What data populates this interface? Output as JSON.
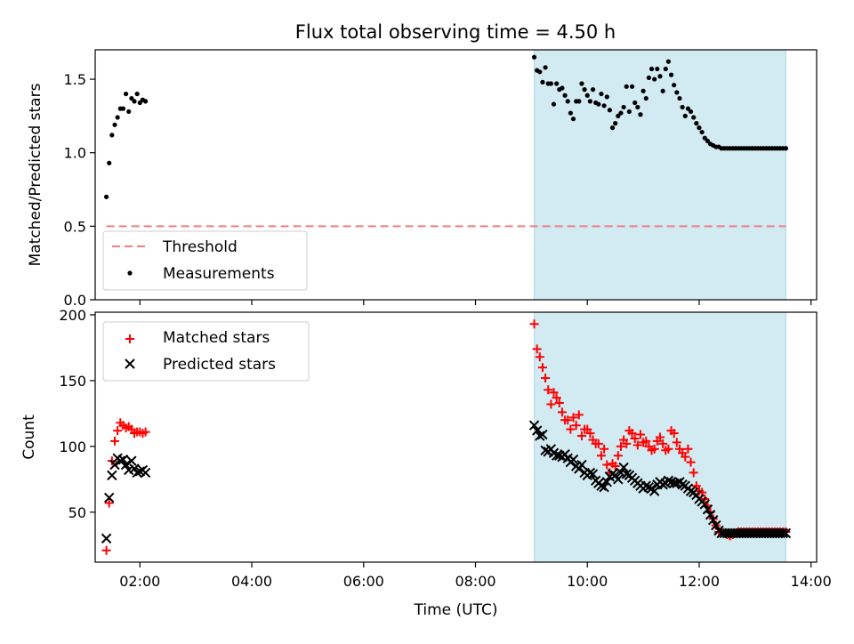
{
  "colors": {
    "threshold": "#f08080",
    "measurements": "#000000",
    "matched": "#ff0000",
    "predicted": "#000000",
    "highlight": "#add8e6"
  },
  "chart_data": [
    {
      "type": "scatter",
      "panel": "top",
      "title": "Flux total observing time = 4.50 h",
      "xlabel": "",
      "ylabel": "Matched/Predicted stars",
      "xlim": [
        "01:12",
        "14:06"
      ],
      "ylim": [
        0,
        1.7
      ],
      "yticks": [
        0.0,
        0.5,
        1.0,
        1.5
      ],
      "ytick_labels": [
        "0.0",
        "0.5",
        "1.0",
        "1.5"
      ],
      "grid": false,
      "legend_position": "lower-left",
      "highlight_span": {
        "start": "09:03",
        "end": "13:33"
      },
      "series": [
        {
          "name": "Threshold",
          "kind": "dashed-line",
          "x": [
            "01:24",
            "13:33"
          ],
          "y": [
            0.5,
            0.5
          ]
        },
        {
          "name": "Measurements",
          "kind": "points",
          "x": [
            "01:24",
            "01:27",
            "01:30",
            "01:33",
            "01:36",
            "01:39",
            "01:42",
            "01:45",
            "01:48",
            "01:51",
            "01:54",
            "01:57",
            "02:00",
            "02:03",
            "02:06",
            "09:03",
            "09:06",
            "09:09",
            "09:12",
            "09:15",
            "09:18",
            "09:21",
            "09:24",
            "09:27",
            "09:30",
            "09:33",
            "09:36",
            "09:39",
            "09:42",
            "09:45",
            "09:48",
            "09:51",
            "09:54",
            "09:57",
            "10:00",
            "10:03",
            "10:06",
            "10:09",
            "10:12",
            "10:15",
            "10:18",
            "10:21",
            "10:24",
            "10:27",
            "10:30",
            "10:33",
            "10:36",
            "10:39",
            "10:42",
            "10:45",
            "10:48",
            "10:51",
            "10:54",
            "10:57",
            "11:00",
            "11:03",
            "11:06",
            "11:09",
            "11:12",
            "11:15",
            "11:18",
            "11:21",
            "11:24",
            "11:27",
            "11:30",
            "11:33",
            "11:36",
            "11:39",
            "11:42",
            "11:45",
            "11:48",
            "11:51",
            "11:54",
            "11:57",
            "12:00",
            "12:03",
            "12:06",
            "12:09",
            "12:12",
            "12:15",
            "12:18",
            "12:21",
            "12:24",
            "12:27",
            "12:30",
            "12:33",
            "12:36",
            "12:39",
            "12:42",
            "12:45",
            "12:48",
            "12:51",
            "12:54",
            "12:57",
            "13:00",
            "13:03",
            "13:06",
            "13:09",
            "13:12",
            "13:15",
            "13:18",
            "13:21",
            "13:24",
            "13:27",
            "13:30",
            "13:33"
          ],
          "y": [
            0.7,
            0.93,
            1.12,
            1.19,
            1.24,
            1.3,
            1.3,
            1.4,
            1.28,
            1.37,
            1.35,
            1.4,
            1.34,
            1.36,
            1.35,
            1.65,
            1.56,
            1.55,
            1.48,
            1.58,
            1.47,
            1.47,
            1.33,
            1.47,
            1.43,
            1.44,
            1.39,
            1.35,
            1.27,
            1.23,
            1.35,
            1.35,
            1.47,
            1.43,
            1.39,
            1.35,
            1.43,
            1.34,
            1.33,
            1.4,
            1.32,
            1.38,
            1.29,
            1.17,
            1.2,
            1.25,
            1.27,
            1.31,
            1.45,
            1.28,
            1.45,
            1.34,
            1.31,
            1.26,
            1.42,
            1.37,
            1.51,
            1.57,
            1.5,
            1.57,
            1.52,
            1.42,
            1.57,
            1.62,
            1.53,
            1.46,
            1.41,
            1.37,
            1.31,
            1.25,
            1.3,
            1.28,
            1.24,
            1.2,
            1.17,
            1.14,
            1.1,
            1.08,
            1.06,
            1.05,
            1.04,
            1.04,
            1.03,
            1.03,
            1.03,
            1.03,
            1.03,
            1.03,
            1.03,
            1.03,
            1.03,
            1.03,
            1.03,
            1.03,
            1.03,
            1.03,
            1.03,
            1.03,
            1.03,
            1.03,
            1.03,
            1.03,
            1.03,
            1.03,
            1.03,
            1.03
          ]
        }
      ]
    },
    {
      "type": "scatter",
      "panel": "bottom",
      "title": "",
      "xlabel": "Time (UTC)",
      "ylabel": "Count",
      "xlim": [
        "01:12",
        "14:06"
      ],
      "xticks": [
        "02:00",
        "04:00",
        "06:00",
        "08:00",
        "10:00",
        "12:00",
        "14:00"
      ],
      "ylim": [
        12,
        202
      ],
      "yticks": [
        50,
        100,
        150,
        200
      ],
      "ytick_labels": [
        "50",
        "100",
        "150",
        "200"
      ],
      "grid": false,
      "legend_position": "upper-left",
      "highlight_span": {
        "start": "09:03",
        "end": "13:33"
      },
      "series": [
        {
          "name": "Matched stars",
          "marker": "plus",
          "x": [
            "01:24",
            "01:27",
            "01:30",
            "01:33",
            "01:36",
            "01:39",
            "01:42",
            "01:45",
            "01:48",
            "01:51",
            "01:54",
            "01:57",
            "02:00",
            "02:03",
            "02:06",
            "09:03",
            "09:06",
            "09:09",
            "09:12",
            "09:15",
            "09:18",
            "09:21",
            "09:24",
            "09:27",
            "09:30",
            "09:33",
            "09:36",
            "09:39",
            "09:42",
            "09:45",
            "09:48",
            "09:51",
            "09:54",
            "09:57",
            "10:00",
            "10:03",
            "10:06",
            "10:09",
            "10:12",
            "10:15",
            "10:18",
            "10:21",
            "10:24",
            "10:27",
            "10:30",
            "10:33",
            "10:36",
            "10:39",
            "10:42",
            "10:45",
            "10:48",
            "10:51",
            "10:54",
            "10:57",
            "11:00",
            "11:03",
            "11:06",
            "11:09",
            "11:12",
            "11:15",
            "11:18",
            "11:21",
            "11:24",
            "11:27",
            "11:30",
            "11:33",
            "11:36",
            "11:39",
            "11:42",
            "11:45",
            "11:48",
            "11:51",
            "11:54",
            "11:57",
            "12:00",
            "12:03",
            "12:06",
            "12:09",
            "12:12",
            "12:15",
            "12:18",
            "12:21",
            "12:24",
            "12:27",
            "12:30",
            "12:33",
            "12:36",
            "12:39",
            "12:42",
            "12:45",
            "12:48",
            "12:51",
            "12:54",
            "12:57",
            "13:00",
            "13:03",
            "13:06",
            "13:09",
            "13:12",
            "13:15",
            "13:18",
            "13:21",
            "13:24",
            "13:27",
            "13:30",
            "13:33"
          ],
          "y": [
            21,
            57,
            89,
            104,
            112,
            118,
            116,
            114,
            115,
            113,
            110,
            111,
            111,
            110,
            111,
            193,
            174,
            168,
            160,
            152,
            143,
            132,
            141,
            137,
            133,
            126,
            120,
            120,
            113,
            122,
            116,
            124,
            108,
            113,
            113,
            110,
            105,
            102,
            102,
            93,
            98,
            86,
            80,
            87,
            85,
            93,
            100,
            105,
            102,
            112,
            110,
            106,
            101,
            109,
            103,
            104,
            100,
            97,
            98,
            104,
            107,
            102,
            97,
            98,
            112,
            110,
            103,
            98,
            95,
            92,
            98,
            88,
            80,
            70,
            66,
            65,
            60,
            55,
            50,
            45,
            40,
            35,
            35,
            34,
            33,
            32,
            33,
            34,
            35,
            35,
            35,
            35,
            35,
            35,
            35,
            35,
            35,
            35,
            35,
            35,
            35,
            35,
            35,
            35,
            35,
            35
          ]
        },
        {
          "name": "Predicted stars",
          "marker": "x",
          "x": [
            "01:24",
            "01:27",
            "01:30",
            "01:33",
            "01:36",
            "01:39",
            "01:42",
            "01:45",
            "01:48",
            "01:51",
            "01:54",
            "01:57",
            "02:00",
            "02:03",
            "02:06",
            "09:03",
            "09:06",
            "09:09",
            "09:12",
            "09:15",
            "09:18",
            "09:21",
            "09:24",
            "09:27",
            "09:30",
            "09:33",
            "09:36",
            "09:39",
            "09:42",
            "09:45",
            "09:48",
            "09:51",
            "09:54",
            "09:57",
            "10:00",
            "10:03",
            "10:06",
            "10:09",
            "10:12",
            "10:15",
            "10:18",
            "10:21",
            "10:24",
            "10:27",
            "10:30",
            "10:33",
            "10:36",
            "10:39",
            "10:42",
            "10:45",
            "10:48",
            "10:51",
            "10:54",
            "10:57",
            "11:00",
            "11:03",
            "11:06",
            "11:09",
            "11:12",
            "11:15",
            "11:18",
            "11:21",
            "11:24",
            "11:27",
            "11:30",
            "11:33",
            "11:36",
            "11:39",
            "11:42",
            "11:45",
            "11:48",
            "11:51",
            "11:54",
            "11:57",
            "12:00",
            "12:03",
            "12:06",
            "12:09",
            "12:12",
            "12:15",
            "12:18",
            "12:21",
            "12:24",
            "12:27",
            "12:30",
            "12:33",
            "12:36",
            "12:39",
            "12:42",
            "12:45",
            "12:48",
            "12:51",
            "12:54",
            "12:57",
            "13:00",
            "13:03",
            "13:06",
            "13:09",
            "13:12",
            "13:15",
            "13:18",
            "13:21",
            "13:24",
            "13:27",
            "13:30",
            "13:33"
          ],
          "y": [
            30,
            61,
            78,
            86,
            91,
            89,
            90,
            86,
            82,
            89,
            83,
            80,
            81,
            82,
            80,
            116,
            112,
            108,
            109,
            97,
            96,
            98,
            95,
            93,
            93,
            92,
            94,
            91,
            88,
            90,
            85,
            83,
            86,
            80,
            78,
            80,
            79,
            74,
            72,
            70,
            69,
            73,
            77,
            79,
            78,
            75,
            80,
            84,
            79,
            78,
            76,
            74,
            72,
            70,
            68,
            70,
            69,
            68,
            66,
            71,
            73,
            71,
            72,
            74,
            73,
            72,
            72,
            73,
            71,
            70,
            68,
            66,
            65,
            63,
            60,
            58,
            56,
            52,
            48,
            44,
            40,
            36,
            34,
            34,
            34,
            34,
            34,
            34,
            34,
            34,
            34,
            34,
            34,
            34,
            34,
            34,
            34,
            34,
            34,
            34,
            34,
            34,
            34,
            34,
            34,
            34
          ]
        }
      ]
    }
  ]
}
